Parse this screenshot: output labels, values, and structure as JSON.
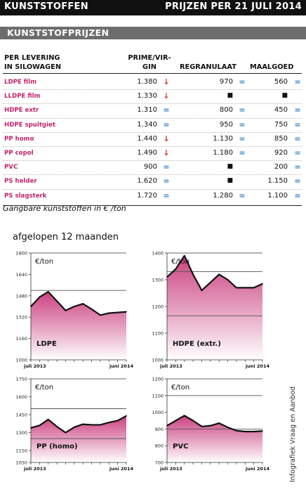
{
  "header": {
    "left_title": "KUNSTSTOFFEN",
    "right_title": "PRIJZEN PER 21 JULI 2014"
  },
  "section": {
    "title": "KUNSTSTOFPRIJZEN"
  },
  "table": {
    "col_product_line1": "PER LEVERING",
    "col_product_line2": "IN SILOWAGEN",
    "col_prime_line1": "PRIME/VIR-",
    "col_prime_line2": "GIN",
    "col_regranulaat": "REGRANULAAT",
    "col_maalgoed": "MAALGOED",
    "rows": [
      {
        "product": "LDPE film",
        "prime": "1.380",
        "prime_trend": "down",
        "regranulaat": "970",
        "regranulaat_trend": "eq",
        "maalgoed": "560",
        "maalgoed_trend": "eq"
      },
      {
        "product": "LLDPE film",
        "prime": "1.330",
        "prime_trend": "down",
        "regranulaat": "■",
        "regranulaat_trend": "",
        "maalgoed": "■",
        "maalgoed_trend": ""
      },
      {
        "product": "HDPE extr",
        "prime": "1.310",
        "prime_trend": "eq",
        "regranulaat": "800",
        "regranulaat_trend": "eq",
        "maalgoed": "450",
        "maalgoed_trend": "eq"
      },
      {
        "product": "HDPE spuitgiet",
        "prime": "1.340",
        "prime_trend": "eq",
        "regranulaat": "950",
        "regranulaat_trend": "eq",
        "maalgoed": "750",
        "maalgoed_trend": "eq"
      },
      {
        "product": "PP homo",
        "prime": "1.440",
        "prime_trend": "down",
        "regranulaat": "1.130",
        "regranulaat_trend": "eq",
        "maalgoed": "850",
        "maalgoed_trend": "eq"
      },
      {
        "product": "PP copol",
        "prime": "1.490",
        "prime_trend": "down",
        "regranulaat": "1.180",
        "regranulaat_trend": "eq",
        "maalgoed": "920",
        "maalgoed_trend": "eq"
      },
      {
        "product": "PVC",
        "prime": "900",
        "prime_trend": "eq",
        "regranulaat": "■",
        "regranulaat_trend": "",
        "maalgoed": "200",
        "maalgoed_trend": "eq"
      },
      {
        "product": "PS helder",
        "prime": "1.620",
        "prime_trend": "eq",
        "regranulaat": "■",
        "regranulaat_trend": "",
        "maalgoed": "1.150",
        "maalgoed_trend": "eq"
      },
      {
        "product": "PS slagsterk",
        "prime": "1.720",
        "prime_trend": "eq",
        "regranulaat": "1.280",
        "regranulaat_trend": "eq",
        "maalgoed": "1.100",
        "maalgoed_trend": "eq"
      }
    ]
  },
  "trend_symbols": {
    "down": "↓",
    "eq": "="
  },
  "colors": {
    "accent": "#c0246e",
    "trend_down": "#d9342b",
    "trend_eq": "#2e7fc9",
    "fill_top": "#c8387a",
    "fill_bottom": "#ffffff"
  },
  "footnote": "Gangbare kunststoffen in € /ton",
  "subtitle": "afgelopen 12 maanden",
  "credit": "Infografiek Vraag en Aanbod",
  "chart_data": [
    {
      "type": "area",
      "label": "LDPE",
      "unit": "€/ton",
      "x_start_label": "juli 2013",
      "x_end_label": "juni 2014",
      "ylim": [
        1000,
        1800
      ],
      "yticks": [
        "1000",
        "1160",
        "1320",
        "1480",
        "1640",
        "1800"
      ],
      "reference_line": 1520,
      "values": [
        1400,
        1470,
        1510,
        1440,
        1370,
        1400,
        1420,
        1380,
        1335,
        1350,
        1355,
        1360
      ]
    },
    {
      "type": "area",
      "label": "HDPE (extr.)",
      "unit": "€/ton",
      "x_start_label": "juli 2013",
      "x_end_label": "juni 2014",
      "ylim": [
        1000,
        1400
      ],
      "yticks": [
        "1000",
        "1100",
        "1200",
        "1300",
        "1400"
      ],
      "reference_line": 1330,
      "reference_line2": 1165,
      "values": [
        1310,
        1340,
        1390,
        1320,
        1260,
        1290,
        1320,
        1300,
        1270,
        1270,
        1270,
        1285
      ]
    },
    {
      "type": "area",
      "label": "PP (homo)",
      "unit": "€/ton",
      "x_start_label": "juli 2013",
      "x_end_label": "juni 2014",
      "ylim": [
        1050,
        1750
      ],
      "yticks": [
        "1050",
        "1150",
        "1300",
        "1450",
        "1600",
        "1750"
      ],
      "reference_line": 1500,
      "reference_line2": 1250,
      "values": [
        1340,
        1360,
        1410,
        1350,
        1300,
        1345,
        1370,
        1365,
        1365,
        1385,
        1400,
        1440
      ]
    },
    {
      "type": "area",
      "label": "PVC",
      "unit": "€/ton",
      "x_start_label": "juli 2013",
      "x_end_label": "juni 2014",
      "ylim": [
        700,
        1200
      ],
      "yticks": [
        "700",
        "800",
        "900",
        "1000",
        "1100",
        "1200"
      ],
      "reference_line": 1100,
      "reference_line2": 900,
      "values": [
        920,
        950,
        980,
        950,
        915,
        920,
        935,
        910,
        890,
        885,
        885,
        888
      ]
    }
  ]
}
